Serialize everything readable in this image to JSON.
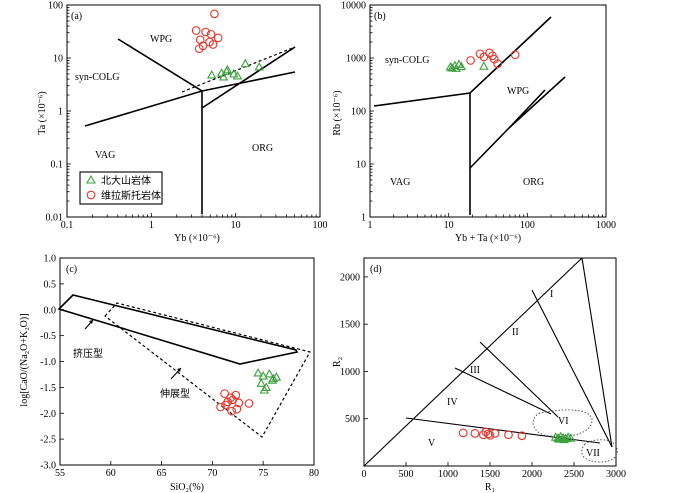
{
  "legend": {
    "group_a": "北大山岩体",
    "group_b": "维拉斯托岩体"
  },
  "chart_data": [
    {
      "id": "a",
      "type": "scatter",
      "panel_label": "(a)",
      "xscale": "log",
      "yscale": "log",
      "xlim": [
        0.1,
        100
      ],
      "ylim": [
        0.01,
        100
      ],
      "xlabel": "Yb (×10⁻⁶)",
      "ylabel": "Ta (×10⁻⁶)",
      "xticks": [
        "0.1",
        "1",
        "10",
        "100"
      ],
      "yticks": [
        "0.01",
        "0.1",
        "1",
        "10",
        "100"
      ],
      "fields": [
        "WPG",
        "syn-COLG",
        "VAG",
        "ORG"
      ],
      "series": [
        {
          "name": "北大山岩体",
          "marker": "triangle",
          "color": "#3aa13a",
          "x": [
            5.2,
            6.8,
            7.2,
            8.0,
            9.5,
            10.5,
            13.0,
            19.0,
            7.8
          ],
          "y": [
            4.8,
            5.2,
            4.4,
            6.0,
            5.0,
            4.6,
            7.8,
            6.8,
            5.6
          ]
        },
        {
          "name": "维拉斯托岩体",
          "marker": "circle",
          "color": "#e8342a",
          "x": [
            5.6,
            3.4,
            4.4,
            5.1,
            3.8,
            4.9,
            6.2,
            4.1,
            3.7,
            5.4
          ],
          "y": [
            68,
            33,
            31,
            28,
            22,
            20,
            24,
            17,
            15,
            18
          ]
        }
      ]
    },
    {
      "id": "b",
      "type": "scatter",
      "panel_label": "(b)",
      "xscale": "log",
      "yscale": "log",
      "xlim": [
        1,
        1000
      ],
      "ylim": [
        1,
        10000
      ],
      "xlabel": "Yb + Ta (×10⁻⁶)",
      "ylabel": "Rb (×10⁻⁶)",
      "xticks": [
        "1",
        "10",
        "100",
        "1000"
      ],
      "yticks": [
        "1",
        "10",
        "100",
        "1000",
        "10000"
      ],
      "fields": [
        "syn-COLG",
        "WPG",
        "VAG",
        "ORG"
      ],
      "series": [
        {
          "name": "北大山岩体",
          "marker": "triangle",
          "color": "#3aa13a",
          "x": [
            10.5,
            12.0,
            12.5,
            13.5,
            14.5,
            28.0,
            11.0
          ],
          "y": [
            680,
            720,
            640,
            760,
            690,
            700,
            650
          ]
        },
        {
          "name": "维拉斯托岩体",
          "marker": "circle",
          "color": "#e8342a",
          "x": [
            25,
            28,
            33,
            36,
            38,
            19,
            70,
            42
          ],
          "y": [
            1200,
            1050,
            1250,
            1100,
            950,
            900,
            1150,
            780
          ]
        }
      ]
    },
    {
      "id": "c",
      "type": "scatter",
      "panel_label": "(c)",
      "xlim": [
        55,
        80
      ],
      "ylim": [
        -3.0,
        1.0
      ],
      "xlabel": "SiO₂(%)",
      "ylabel": "log[CaO/(Na₂O+K₂O)]",
      "xticks": [
        "55",
        "60",
        "65",
        "70",
        "75",
        "80"
      ],
      "yticks": [
        "1.0",
        "0.5",
        "0.0",
        "-0.5",
        "-1.0",
        "-1.5",
        "-2.0",
        "-2.5",
        "-3.0"
      ],
      "fields": [
        "挤压型",
        "伸展型"
      ],
      "series": [
        {
          "name": "北大山岩体",
          "marker": "triangle",
          "color": "#3aa13a",
          "x": [
            74.5,
            75.0,
            75.6,
            76.0,
            76.3,
            74.8,
            75.3,
            75.9,
            75.1
          ],
          "y": [
            -1.22,
            -1.28,
            -1.24,
            -1.33,
            -1.3,
            -1.42,
            -1.5,
            -1.36,
            -1.55
          ]
        },
        {
          "name": "维拉斯托岩体",
          "marker": "circle",
          "color": "#e8342a",
          "x": [
            71.2,
            71.8,
            72.3,
            71.5,
            72.6,
            72.0,
            70.8,
            71.3,
            72.4,
            71.9,
            73.6
          ],
          "y": [
            -1.62,
            -1.7,
            -1.65,
            -1.78,
            -1.8,
            -1.74,
            -1.88,
            -1.84,
            -1.92,
            -1.96,
            -1.81
          ]
        }
      ]
    },
    {
      "id": "d",
      "type": "scatter",
      "panel_label": "(d)",
      "xlim": [
        0,
        3000
      ],
      "ylim": [
        0,
        2200
      ],
      "xlabel": "R₁",
      "ylabel": "R₂",
      "xticks": [
        "0",
        "500",
        "1000",
        "1500",
        "2000",
        "2500",
        "3000"
      ],
      "yticks": [
        "500",
        "1000",
        "1500",
        "2000"
      ],
      "fields": [
        "I",
        "II",
        "III",
        "IV",
        "V",
        "VI",
        "VII"
      ],
      "series": [
        {
          "name": "北大山岩体",
          "marker": "triangle",
          "color": "#3aa13a",
          "x": [
            2280,
            2310,
            2340,
            2370,
            2400,
            2430,
            2460,
            2320,
            2380
          ],
          "y": [
            305,
            295,
            310,
            300,
            290,
            305,
            295,
            285,
            280
          ]
        },
        {
          "name": "维拉斯托岩体",
          "marker": "circle",
          "color": "#e8342a",
          "x": [
            1180,
            1320,
            1420,
            1480,
            1500,
            1560,
            1720,
            1880,
            1450
          ],
          "y": [
            350,
            345,
            330,
            340,
            325,
            345,
            330,
            320,
            360
          ]
        }
      ]
    }
  ]
}
